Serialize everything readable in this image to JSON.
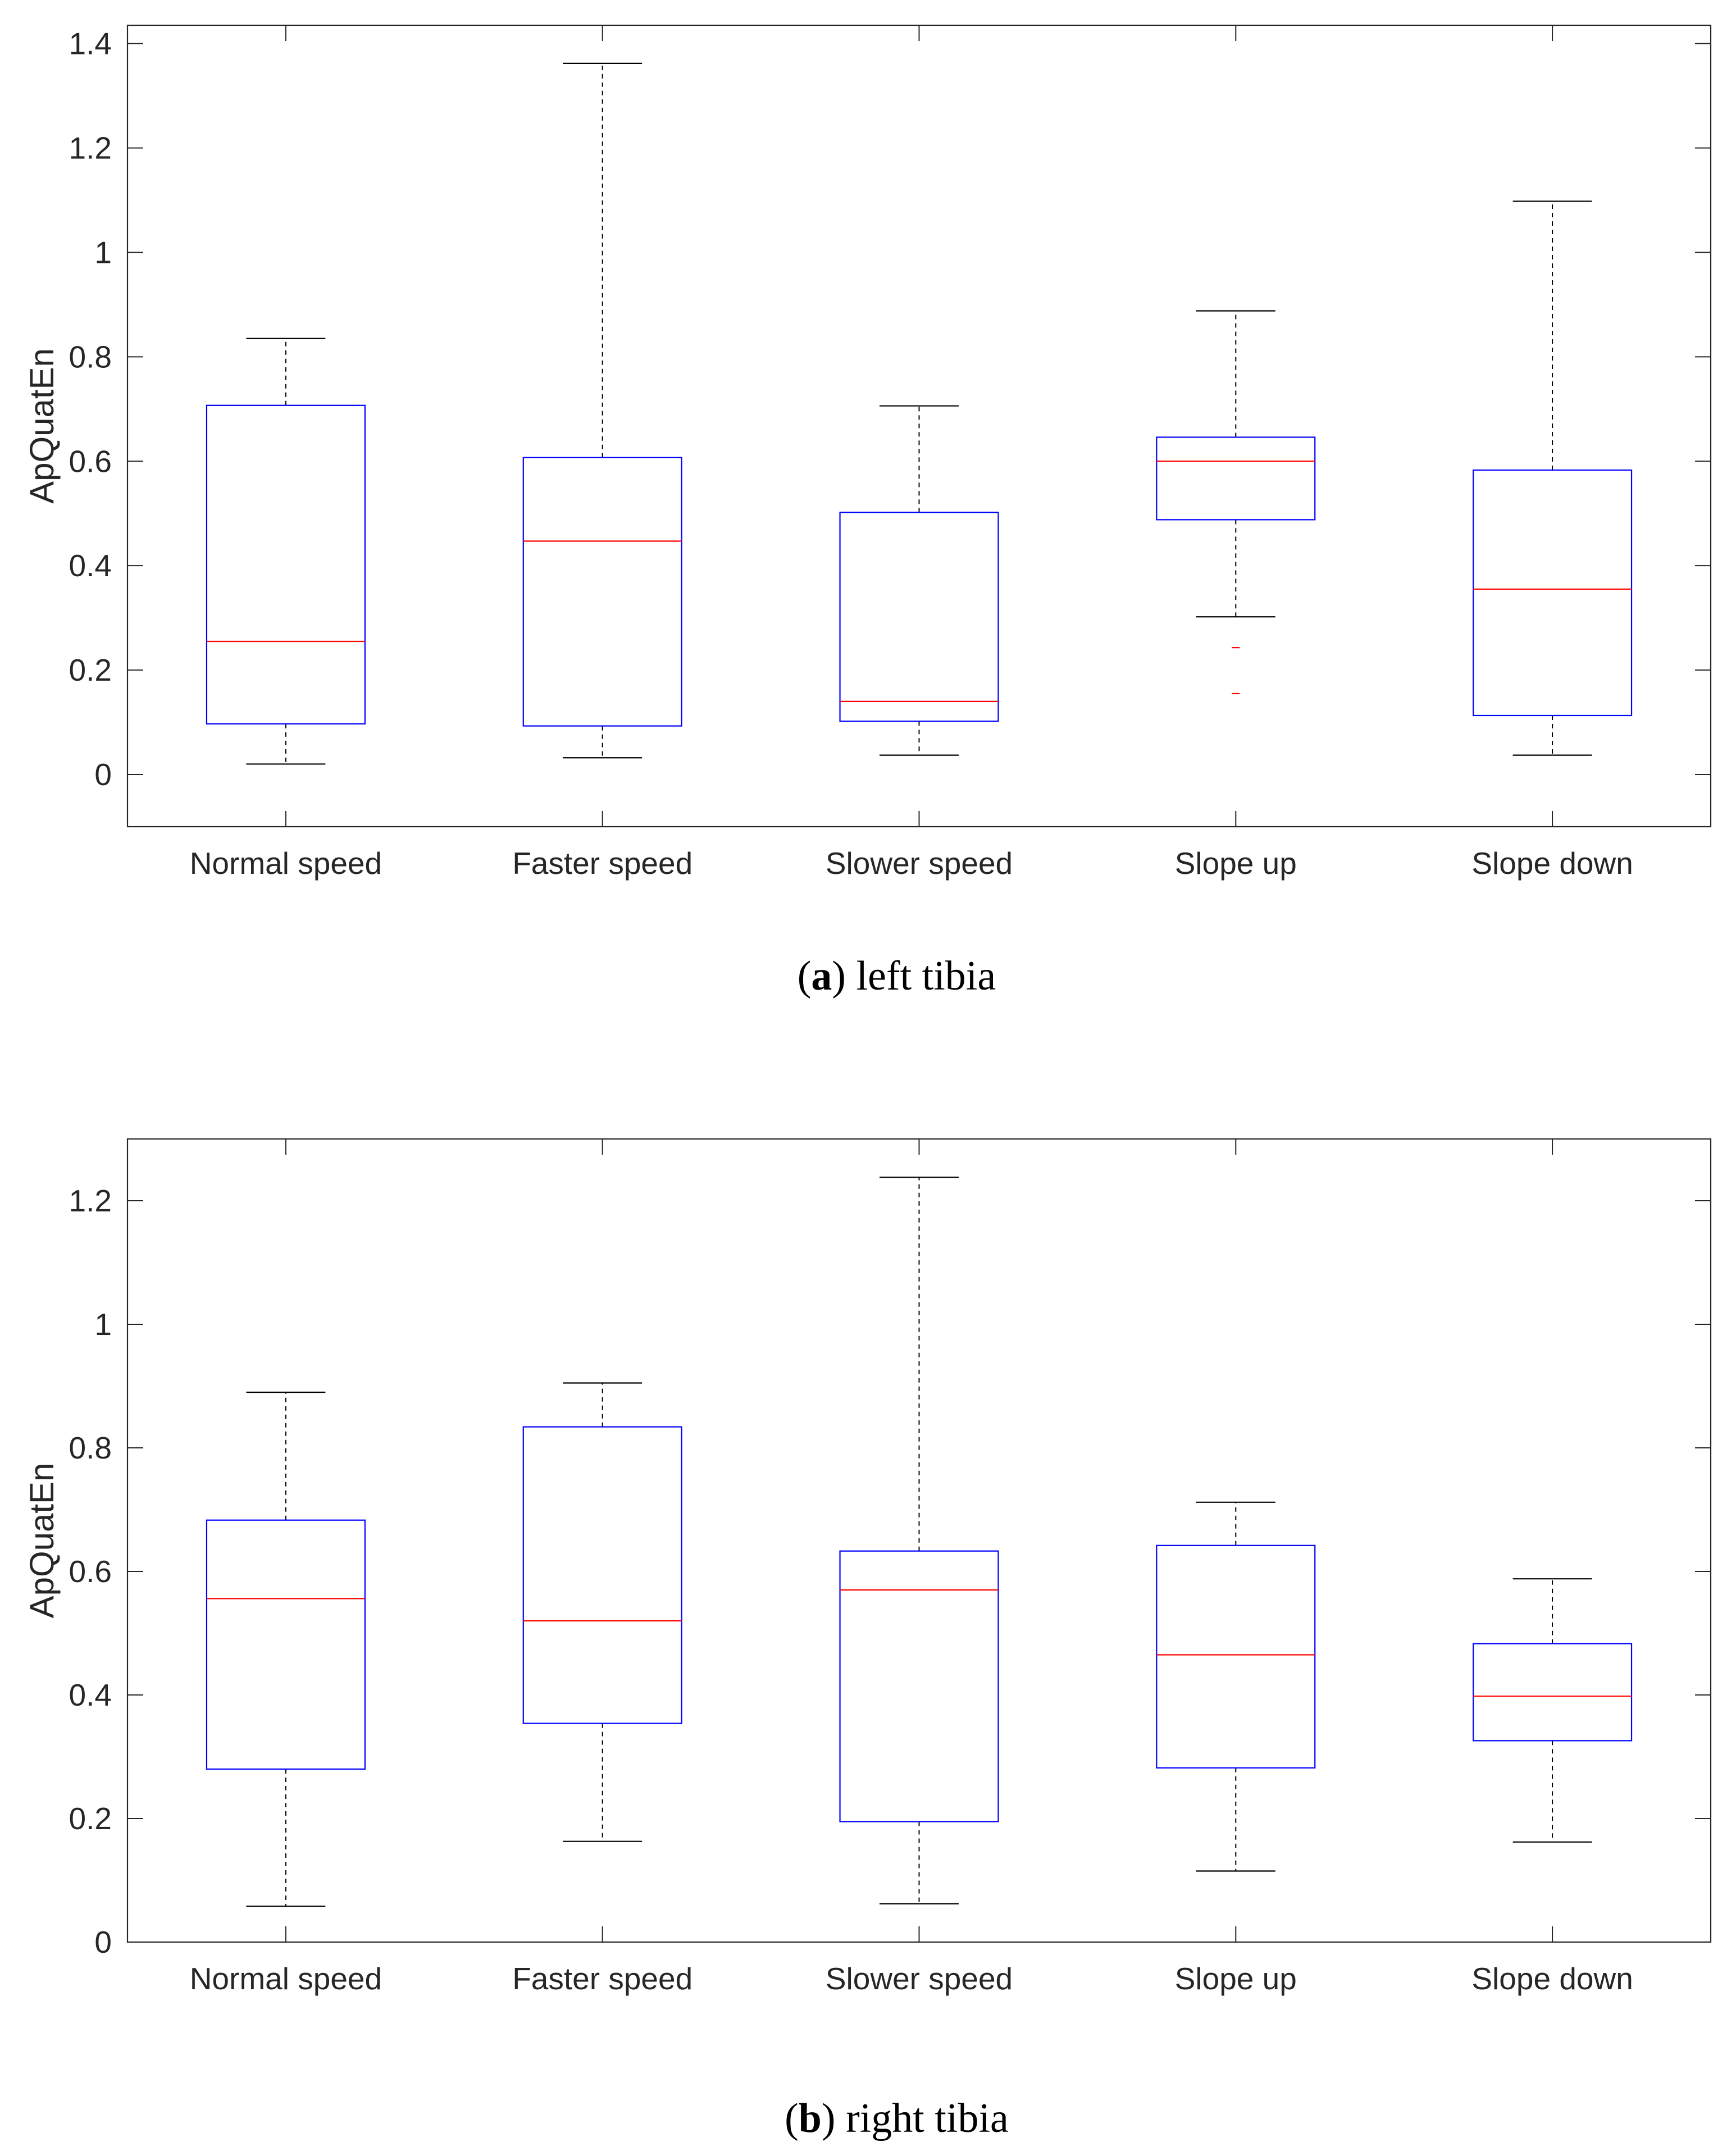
{
  "colors": {
    "box": "#0000ff",
    "median": "#ff0000",
    "whisker": "#000000",
    "axis": "#262626",
    "outlier": "#ff0000"
  },
  "chart_data": [
    {
      "type": "box",
      "panel_letter": "a",
      "caption_open": "(",
      "caption_close": ")",
      "caption_text": " left tibia",
      "ylabel": "ApQuatEn",
      "xlabel": "",
      "ylim": [
        -0.1,
        1.435
      ],
      "yticks": [
        0,
        0.2,
        0.4,
        0.6,
        0.8,
        1,
        1.2,
        1.4
      ],
      "ytick_labels": [
        "0",
        "0.2",
        "0.4",
        "0.6",
        "0.8",
        "1",
        "1.2",
        "1.4"
      ],
      "categories": [
        "Normal speed",
        "Faster speed",
        "Slower speed",
        "Slope up",
        "Slope down"
      ],
      "boxes": [
        {
          "whisker_low": 0.02,
          "q1": 0.097,
          "median": 0.255,
          "q3": 0.707,
          "whisker_high": 0.835,
          "outliers": []
        },
        {
          "whisker_low": 0.032,
          "q1": 0.093,
          "median": 0.447,
          "q3": 0.607,
          "whisker_high": 1.362,
          "outliers": []
        },
        {
          "whisker_low": 0.037,
          "q1": 0.102,
          "median": 0.14,
          "q3": 0.502,
          "whisker_high": 0.706,
          "outliers": []
        },
        {
          "whisker_low": 0.302,
          "q1": 0.488,
          "median": 0.6,
          "q3": 0.646,
          "whisker_high": 0.888,
          "outliers": [
            0.243,
            0.155
          ]
        },
        {
          "whisker_low": 0.037,
          "q1": 0.113,
          "median": 0.355,
          "q3": 0.583,
          "whisker_high": 1.098,
          "outliers": []
        }
      ]
    },
    {
      "type": "box",
      "panel_letter": "b",
      "caption_open": "(",
      "caption_close": ")",
      "caption_text": " right tibia",
      "ylabel": "ApQuatEn",
      "xlabel": "",
      "ylim": [
        0,
        1.3
      ],
      "yticks": [
        0,
        0.2,
        0.4,
        0.6,
        0.8,
        1,
        1.2
      ],
      "ytick_labels": [
        "0",
        "0.2",
        "0.4",
        "0.6",
        "0.8",
        "1",
        "1.2"
      ],
      "categories": [
        "Normal speed",
        "Faster speed",
        "Slower speed",
        "Slope up",
        "Slope down"
      ],
      "boxes": [
        {
          "whisker_low": 0.058,
          "q1": 0.28,
          "median": 0.556,
          "q3": 0.683,
          "whisker_high": 0.89,
          "outliers": []
        },
        {
          "whisker_low": 0.163,
          "q1": 0.354,
          "median": 0.52,
          "q3": 0.834,
          "whisker_high": 0.905,
          "outliers": []
        },
        {
          "whisker_low": 0.062,
          "q1": 0.195,
          "median": 0.57,
          "q3": 0.633,
          "whisker_high": 1.238,
          "outliers": []
        },
        {
          "whisker_low": 0.115,
          "q1": 0.282,
          "median": 0.465,
          "q3": 0.642,
          "whisker_high": 0.712,
          "outliers": []
        },
        {
          "whisker_low": 0.162,
          "q1": 0.326,
          "median": 0.398,
          "q3": 0.483,
          "whisker_high": 0.588,
          "outliers": []
        }
      ]
    }
  ]
}
